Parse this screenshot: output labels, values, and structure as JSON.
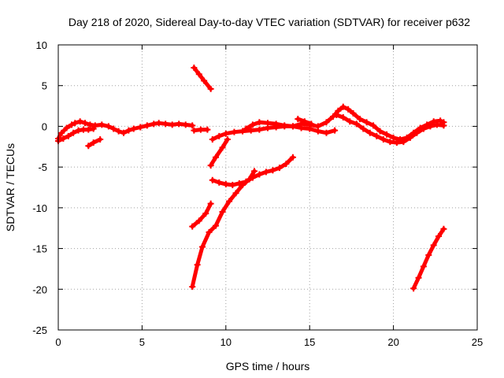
{
  "chart_data": {
    "type": "scatter",
    "title": "Day 218 of 2020, Sidereal Day-to-day VTEC variation (SDTVAR) for receiver p632",
    "xlabel": "GPS time / hours",
    "ylabel": "SDTVAR / TECUs",
    "xlim": [
      0,
      25
    ],
    "ylim": [
      -25,
      10
    ],
    "xticks": [
      0,
      5,
      10,
      15,
      20,
      25
    ],
    "yticks": [
      10,
      5,
      0,
      -5,
      -10,
      -15,
      -20,
      -25
    ],
    "grid": true,
    "series_color": "#ff0000",
    "series": [
      {
        "values": [
          [
            0.0,
            -1.5
          ],
          [
            0.2,
            -0.8
          ],
          [
            0.5,
            -0.2
          ],
          [
            0.8,
            0.2
          ],
          [
            1.0,
            0.4
          ],
          [
            1.3,
            0.6
          ],
          [
            1.6,
            0.4
          ],
          [
            1.9,
            0.2
          ],
          [
            2.2,
            0.1
          ],
          [
            2.6,
            0.2
          ],
          [
            3.0,
            0.0
          ],
          [
            3.3,
            -0.3
          ],
          [
            3.6,
            -0.6
          ],
          [
            3.9,
            -0.8
          ],
          [
            4.2,
            -0.5
          ],
          [
            4.5,
            -0.3
          ],
          [
            4.9,
            -0.1
          ],
          [
            5.3,
            0.1
          ],
          [
            5.7,
            0.3
          ],
          [
            6.0,
            0.4
          ],
          [
            6.4,
            0.3
          ],
          [
            6.8,
            0.2
          ],
          [
            7.2,
            0.3
          ],
          [
            7.6,
            0.2
          ],
          [
            8.0,
            0.1
          ]
        ]
      },
      {
        "values": [
          [
            0.0,
            -1.8
          ],
          [
            0.3,
            -1.5
          ],
          [
            0.6,
            -1.2
          ],
          [
            0.9,
            -0.8
          ],
          [
            1.2,
            -0.5
          ],
          [
            1.5,
            -0.4
          ],
          [
            1.8,
            -0.4
          ],
          [
            2.1,
            -0.3
          ]
        ]
      },
      {
        "values": [
          [
            1.8,
            -2.4
          ],
          [
            2.1,
            -2.0
          ],
          [
            2.5,
            -1.6
          ]
        ]
      },
      {
        "values": [
          [
            8.1,
            7.2
          ],
          [
            8.4,
            6.4
          ],
          [
            8.7,
            5.6
          ],
          [
            9.1,
            4.6
          ]
        ]
      },
      {
        "values": [
          [
            8.1,
            -0.5
          ],
          [
            8.5,
            -0.4
          ],
          [
            8.9,
            -0.4
          ]
        ]
      },
      {
        "values": [
          [
            9.2,
            -1.6
          ],
          [
            9.6,
            -1.2
          ],
          [
            10.0,
            -0.9
          ],
          [
            10.5,
            -0.7
          ],
          [
            11.0,
            -0.6
          ],
          [
            11.5,
            -0.5
          ],
          [
            12.0,
            -0.4
          ],
          [
            12.5,
            -0.2
          ],
          [
            13.0,
            -0.1
          ],
          [
            13.5,
            0.0
          ],
          [
            14.0,
            0.0
          ],
          [
            14.5,
            -0.2
          ],
          [
            15.0,
            -0.3
          ],
          [
            15.5,
            -0.6
          ],
          [
            16.0,
            -0.8
          ],
          [
            16.5,
            -0.5
          ]
        ]
      },
      {
        "values": [
          [
            11.2,
            -0.3
          ],
          [
            11.6,
            0.2
          ],
          [
            12.0,
            0.5
          ],
          [
            12.5,
            0.4
          ],
          [
            13.0,
            0.3
          ],
          [
            13.5,
            0.1
          ],
          [
            14.0,
            0.0
          ],
          [
            14.5,
            0.3
          ],
          [
            15.0,
            0.2
          ],
          [
            15.5,
            0.0
          ],
          [
            16.0,
            0.5
          ],
          [
            16.4,
            1.2
          ],
          [
            16.7,
            1.9
          ],
          [
            17.0,
            2.4
          ],
          [
            17.3,
            2.1
          ],
          [
            17.6,
            1.6
          ],
          [
            18.0,
            0.9
          ],
          [
            18.4,
            0.5
          ],
          [
            18.8,
            0.1
          ],
          [
            19.2,
            -0.6
          ],
          [
            19.6,
            -1.0
          ],
          [
            20.0,
            -1.4
          ],
          [
            20.4,
            -1.6
          ],
          [
            20.8,
            -1.4
          ],
          [
            21.2,
            -0.8
          ],
          [
            21.6,
            -0.2
          ],
          [
            22.0,
            0.2
          ],
          [
            22.4,
            0.6
          ],
          [
            22.8,
            0.7
          ],
          [
            23.0,
            0.5
          ]
        ]
      },
      {
        "values": [
          [
            14.3,
            0.9
          ],
          [
            14.7,
            0.6
          ],
          [
            15.1,
            0.3
          ]
        ]
      },
      {
        "values": [
          [
            16.6,
            1.4
          ],
          [
            17.0,
            1.1
          ],
          [
            17.4,
            0.6
          ],
          [
            17.8,
            0.3
          ],
          [
            18.2,
            -0.3
          ],
          [
            18.6,
            -0.8
          ],
          [
            19.0,
            -1.2
          ],
          [
            19.4,
            -1.6
          ],
          [
            19.8,
            -1.9
          ],
          [
            20.2,
            -2.0
          ],
          [
            20.6,
            -1.9
          ],
          [
            21.0,
            -1.4
          ],
          [
            21.4,
            -0.8
          ],
          [
            21.8,
            -0.3
          ],
          [
            22.2,
            0.0
          ],
          [
            22.6,
            0.2
          ],
          [
            23.0,
            0.1
          ]
        ]
      },
      {
        "values": [
          [
            9.1,
            -4.8
          ],
          [
            9.4,
            -3.8
          ],
          [
            9.8,
            -2.6
          ],
          [
            10.1,
            -1.6
          ]
        ]
      },
      {
        "values": [
          [
            9.2,
            -6.6
          ],
          [
            9.6,
            -6.9
          ],
          [
            10.0,
            -7.1
          ],
          [
            10.4,
            -7.2
          ],
          [
            10.8,
            -7.0
          ],
          [
            11.2,
            -6.8
          ],
          [
            11.6,
            -6.3
          ],
          [
            12.0,
            -5.9
          ],
          [
            12.4,
            -5.6
          ],
          [
            12.8,
            -5.4
          ],
          [
            13.2,
            -5.1
          ],
          [
            13.6,
            -4.6
          ],
          [
            14.0,
            -3.8
          ]
        ]
      },
      {
        "values": [
          [
            8.0,
            -12.3
          ],
          [
            8.4,
            -11.6
          ],
          [
            8.8,
            -10.7
          ],
          [
            9.1,
            -9.5
          ]
        ]
      },
      {
        "values": [
          [
            8.0,
            -19.7
          ],
          [
            8.3,
            -17.0
          ],
          [
            8.6,
            -14.8
          ],
          [
            9.0,
            -13.0
          ],
          [
            9.4,
            -12.2
          ],
          [
            9.8,
            -10.5
          ],
          [
            10.2,
            -9.2
          ],
          [
            10.6,
            -8.2
          ],
          [
            11.0,
            -7.2
          ],
          [
            11.4,
            -6.5
          ],
          [
            11.7,
            -5.5
          ]
        ]
      },
      {
        "values": [
          [
            21.2,
            -19.9
          ],
          [
            21.5,
            -18.6
          ],
          [
            21.8,
            -17.2
          ],
          [
            22.1,
            -15.8
          ],
          [
            22.4,
            -14.6
          ],
          [
            22.7,
            -13.5
          ],
          [
            23.0,
            -12.6
          ]
        ]
      }
    ]
  }
}
